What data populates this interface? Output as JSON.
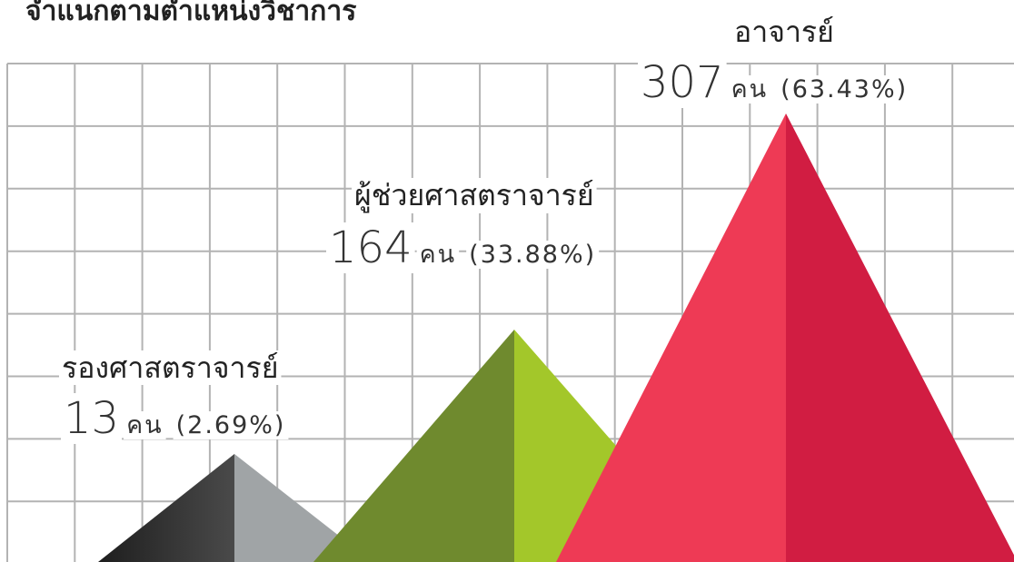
{
  "header": {
    "title": "จำแนกตามตำแหน่งวิชาการ"
  },
  "items": [
    {
      "name": "รองศาสตราจารย์",
      "count": 13,
      "unit": "คน",
      "share": "(2.69%)"
    },
    {
      "name": "ผู้ช่วยศาสตราจารย์",
      "count": 164,
      "unit": "คน",
      "share": "(33.88%)"
    },
    {
      "name": "อาจารย์",
      "count": 307,
      "unit": "คน",
      "share": "(63.43%)"
    }
  ]
}
